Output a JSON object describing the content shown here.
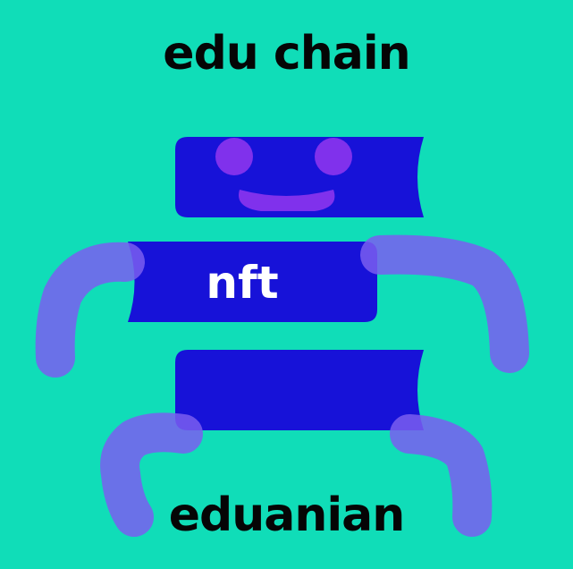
{
  "header": {
    "title": "edu chain"
  },
  "mascot": {
    "label": "nft",
    "block_color": "#1712d8",
    "limb_color": "#7a5ef0",
    "face_color": "#8a34ee"
  },
  "footer": {
    "title": "eduanian"
  }
}
